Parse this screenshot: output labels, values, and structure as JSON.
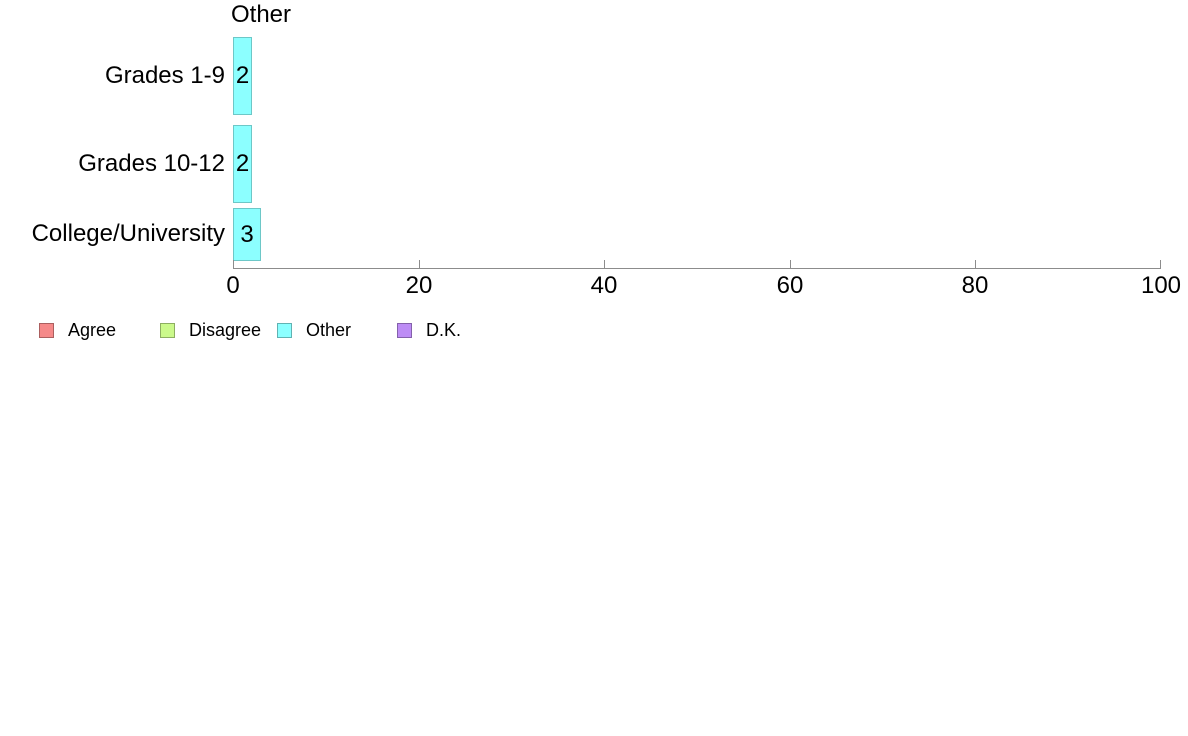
{
  "chart_data": {
    "type": "bar",
    "orientation": "horizontal",
    "title": "Other",
    "categories": [
      "Grades 1-9",
      "Grades 10-12",
      "College/University"
    ],
    "series": [
      {
        "name": "Other",
        "color": "#8cffff",
        "values": [
          2,
          2,
          3
        ]
      }
    ],
    "value_labels": [
      "2",
      "2",
      "3"
    ],
    "xlabel": "",
    "ylabel": "",
    "xlim": [
      0,
      100
    ],
    "x_ticks": [
      "0",
      "20",
      "40",
      "60",
      "80",
      "100"
    ],
    "grid": false,
    "legend_position": "bottom-left",
    "legend": [
      {
        "label": "Agree",
        "color": "#f58989"
      },
      {
        "label": "Disagree",
        "color": "#cbf98b"
      },
      {
        "label": "Other",
        "color": "#8cffff"
      },
      {
        "label": "D.K.",
        "color": "#bd8cf5"
      }
    ],
    "colors": {
      "axis": "#8c8c8c",
      "text": "#000000",
      "background": "#ffffff",
      "bar_border": "rgba(0,0,0,0.22)"
    }
  }
}
